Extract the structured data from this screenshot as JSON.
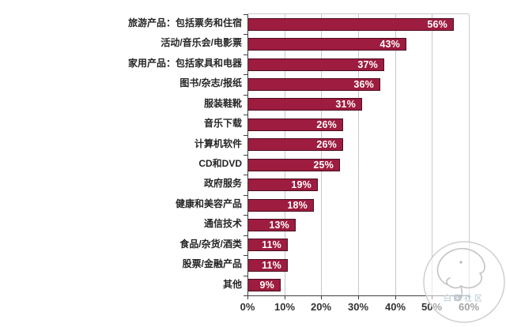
{
  "chart_data": {
    "type": "bar",
    "orientation": "horizontal",
    "title": "",
    "xlabel": "",
    "ylabel": "",
    "categories": [
      "旅游产品：包括票务和住宿",
      "活动/音乐会/电影票",
      "家用产品：包括家具和电器",
      "图书/杂志/报纸",
      "服装鞋靴",
      "音乐下载",
      "计算机软件",
      "CD和DVD",
      "政府服务",
      "健康和美容产品",
      "通信技术",
      "食品/杂货/酒类",
      "股票/金融产品",
      "其他"
    ],
    "values": [
      56,
      43,
      37,
      36,
      31,
      26,
      26,
      25,
      19,
      18,
      13,
      11,
      11,
      9
    ],
    "value_suffix": "%",
    "x_tick_values": [
      0,
      10,
      20,
      30,
      40,
      50,
      60
    ],
    "x_tick_labels": [
      "0%",
      "10%",
      "20%",
      "30%",
      "40%",
      "50%",
      "60%"
    ],
    "xlim": [
      0,
      60
    ],
    "grid": true,
    "legend": false,
    "colors": {
      "bar_fill": "#9d1c3f",
      "bar_border": "#4a0f22",
      "grid": "#c9c9c9",
      "axis": "#3f3f3f",
      "category_label": "#262626",
      "tick_label": "#333333",
      "value_label": "#ffffff"
    }
  },
  "watermark": {
    "text": "白鲸社区",
    "icon": "beluga-whale-outline",
    "circle_color": "#cfcfcf"
  }
}
